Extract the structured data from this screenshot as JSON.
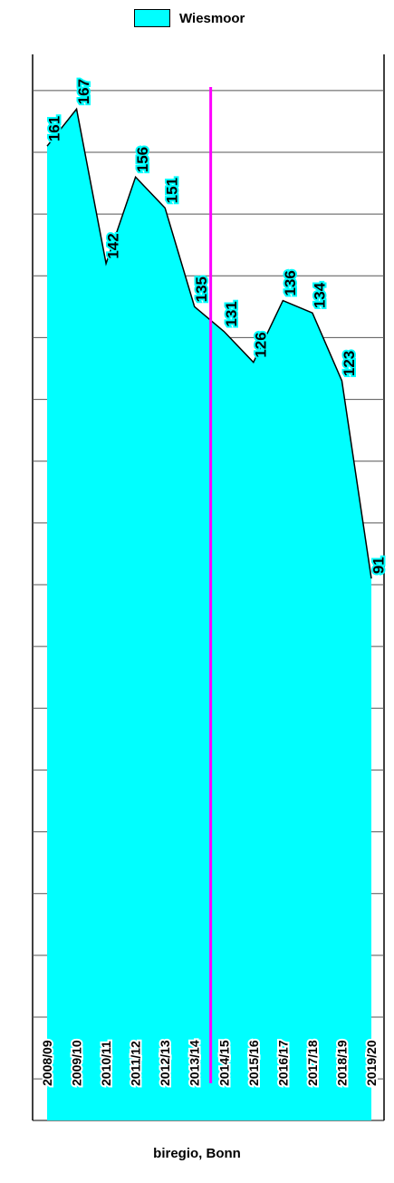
{
  "legend": {
    "label": "Wiesmoor"
  },
  "source": "biregio, Bonn",
  "colors": {
    "fill": "#00FFFF",
    "line": "#000000",
    "grid": "#555555",
    "marker": "#FF00FF"
  },
  "chart_data": {
    "type": "area",
    "title": "",
    "xlabel": "",
    "ylabel": "",
    "categories": [
      "2008/09",
      "2009/10",
      "2010/11",
      "2011/12",
      "2012/13",
      "2013/14",
      "2014/15",
      "2015/16",
      "2016/17",
      "2017/18",
      "2018/19",
      "2019/20"
    ],
    "series": [
      {
        "name": "Wiesmoor",
        "values": [
          161,
          167,
          142,
          156,
          151,
          135,
          131,
          126,
          136,
          134,
          123,
          91
        ]
      }
    ],
    "value_labels": [
      "161",
      "167",
      "142",
      "156",
      "151",
      "135",
      "131",
      "126",
      "136",
      "134",
      "123",
      "91"
    ],
    "marker_line": {
      "between": [
        "2013/14",
        "2014/15"
      ]
    },
    "grid": true,
    "legend_position": "top-center"
  }
}
